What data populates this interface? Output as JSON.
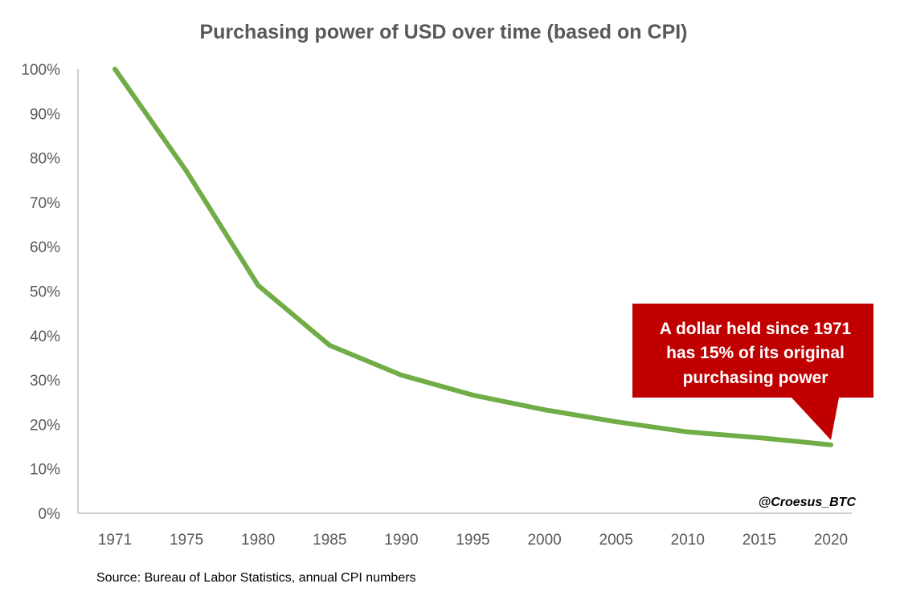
{
  "chart_data": {
    "type": "line",
    "title": "Purchasing power of USD over time (based on CPI)",
    "xlabel": "",
    "ylabel": "",
    "categories": [
      "1971",
      "1975",
      "1980",
      "1985",
      "1990",
      "1995",
      "2000",
      "2005",
      "2010",
      "2015",
      "2020"
    ],
    "series": [
      {
        "name": "Purchasing power",
        "color": "#70AD47",
        "values": [
          100,
          77,
          51.3,
          37.8,
          31.1,
          26.6,
          23.3,
          20.6,
          18.3,
          17.0,
          15.4
        ]
      }
    ],
    "ylim": [
      0,
      100
    ],
    "yticks": [
      "0%",
      "10%",
      "20%",
      "30%",
      "40%",
      "50%",
      "60%",
      "70%",
      "80%",
      "90%",
      "100%"
    ],
    "grid": false,
    "annotation": {
      "lines": [
        "A dollar held since 1971",
        "has 15% of its original",
        "purchasing power"
      ],
      "target_category": "2020",
      "color": "#C00000"
    },
    "credit": "@Croesus_BTC",
    "source": "Source: Bureau of Labor Statistics, annual CPI numbers"
  }
}
